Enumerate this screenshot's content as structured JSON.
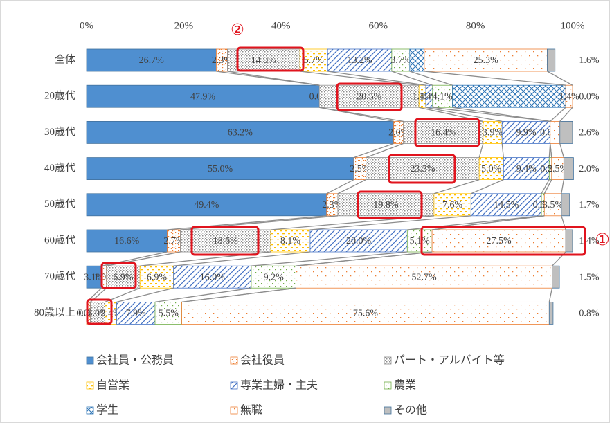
{
  "chart_data": {
    "type": "stacked_bar_100",
    "categories": [
      "全体",
      "20歳代",
      "30歳代",
      "40歳代",
      "50歳代",
      "60歳代",
      "70歳代",
      "80歳以上"
    ],
    "xlim": [
      0,
      100
    ],
    "xticks": [
      {
        "value": 0,
        "label": "0%"
      },
      {
        "value": 20,
        "label": "20%"
      },
      {
        "value": 40,
        "label": "40%"
      },
      {
        "value": 60,
        "label": "60%"
      },
      {
        "value": 80,
        "label": "80%"
      },
      {
        "value": 100,
        "label": "100%"
      }
    ],
    "legend": "bottom",
    "annotations": [
      "①",
      "②"
    ],
    "series": [
      {
        "name": "会社員・公務員",
        "color": "#4f8fd0",
        "pattern": "solid",
        "values": [
          26.7,
          47.9,
          63.2,
          55.0,
          49.4,
          16.6,
          3.1,
          0.0
        ],
        "value_labels": [
          "26.7%",
          "47.9%",
          "63.2%",
          "55.0%",
          "49.4%",
          "16.6%",
          "3.1%",
          "0.0%"
        ]
      },
      {
        "name": "会社役員",
        "color": "#ed7d31",
        "pattern": "dense-dots",
        "values": [
          2.3,
          0.0,
          2.0,
          2.5,
          2.3,
          2.7,
          1.0,
          0.8
        ],
        "value_labels": [
          "2.3%",
          "0.0%",
          "2.0%",
          "2.5%",
          "2.3%",
          "2.7%",
          "1.0%",
          "0.8%"
        ]
      },
      {
        "name": "パート・アルバイト等",
        "color": "#8c8c8c",
        "pattern": "checker",
        "values": [
          14.9,
          20.5,
          16.4,
          23.3,
          19.8,
          18.6,
          6.9,
          3.0
        ],
        "value_labels": [
          "14.9%",
          "20.5%",
          "16.4%",
          "23.3%",
          "19.8%",
          "18.6%",
          "6.9%",
          "3.0%"
        ]
      },
      {
        "name": "自営業",
        "color": "#ffc000",
        "pattern": "dashes",
        "values": [
          5.7,
          1.4,
          3.9,
          5.0,
          7.6,
          8.1,
          6.9,
          2.4
        ],
        "value_labels": [
          "5.7%",
          "1.4%",
          "3.9%",
          "5.0%",
          "7.6%",
          "8.1%",
          "6.9%",
          "2.4%"
        ]
      },
      {
        "name": "専業主婦・主夫",
        "color": "#4472c4",
        "pattern": "diagonal",
        "values": [
          13.2,
          1.4,
          9.9,
          9.4,
          14.5,
          20.0,
          16.0,
          7.9
        ],
        "value_labels": [
          "13.2%",
          "1.4%",
          "9.9%",
          "9.4%",
          "14.5%",
          "20.0%",
          "16.0%",
          "7.9%"
        ]
      },
      {
        "name": "農業",
        "color": "#70ad47",
        "pattern": "dots",
        "values": [
          3.7,
          4.1,
          0.0,
          0.5,
          0.6,
          5.1,
          9.2,
          5.5
        ],
        "value_labels": [
          "3.7%",
          "4.1%",
          null,
          "0.5%",
          "0.6%",
          "5.1%",
          "9.2%",
          "5.5%"
        ]
      },
      {
        "name": "学生",
        "color": "#2e75b6",
        "pattern": "crosshatch",
        "values": [
          3.0,
          23.3,
          0.0,
          0.0,
          0.0,
          0.0,
          0.0,
          0.0
        ],
        "value_labels": [
          null,
          null,
          "0.0%",
          null,
          null,
          null,
          null,
          null
        ]
      },
      {
        "name": "無職",
        "color": "#ed7d31",
        "pattern": "sparse-dots",
        "values": [
          25.3,
          1.4,
          2.0,
          2.5,
          3.5,
          27.5,
          52.7,
          75.6
        ],
        "value_labels": [
          "25.3%",
          "1.4%",
          null,
          "2.5%",
          "3.5%",
          "27.5%",
          "52.7%",
          "75.6%"
        ]
      },
      {
        "name": "その他",
        "color": "#bfbfbf",
        "pattern": "solid",
        "values": [
          1.6,
          0.0,
          2.6,
          2.0,
          1.7,
          1.4,
          1.5,
          0.8
        ],
        "value_labels": [
          "1.6%",
          "0.0%",
          "2.6%",
          "2.0%",
          "1.7%",
          "1.4%",
          "1.5%",
          "0.8%"
        ]
      }
    ]
  }
}
